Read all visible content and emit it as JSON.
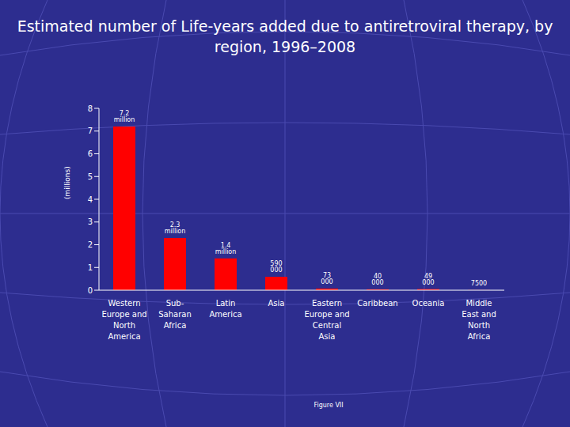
{
  "chart_data": {
    "type": "bar",
    "title": "Estimated number of Life-years added due to antiretroviral therapy, by region, 1996–2008",
    "y_label": "(millions)",
    "categories": [
      "Western Europe and North America",
      "Sub-Saharan Africa",
      "Latin America",
      "Asia",
      "Eastern Europe and Central Asia",
      "Caribbean",
      "Oceania",
      "Middle East and North Africa"
    ],
    "values": [
      7.2,
      2.3,
      1.4,
      0.59,
      0.073,
      0.04,
      0.049,
      0.0075
    ],
    "value_labels": [
      "7.2 million",
      "2.3 million",
      "1.4 million",
      "590 000",
      "73 000",
      "40 000",
      "49 000",
      "7500"
    ],
    "color": "#ff0000",
    "ylim": [
      0,
      8
    ],
    "yticks": [
      0,
      1,
      2,
      3,
      4,
      5,
      6,
      7,
      8
    ],
    "grid": false,
    "data_labels": true,
    "annotations": [
      "Figure VII"
    ]
  }
}
